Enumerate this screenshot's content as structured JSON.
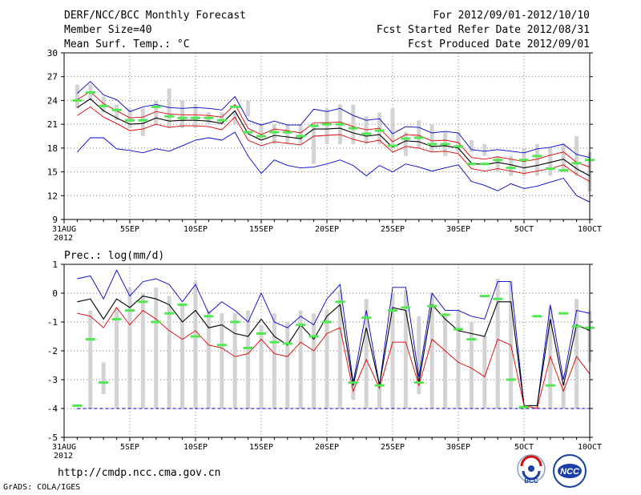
{
  "header": {
    "title": "DERF/NCC/BCC Monthly Forecast",
    "member_size": "Member Size=40",
    "variable": "Mean Surf. Temp.: °C",
    "forecast_period": "For 2012/09/01-2012/10/10",
    "start_date": "Fcst Started Refer Date 2012/08/31",
    "produced_date": "Fcst Produced Date 2012/09/01"
  },
  "footer": {
    "url": "http://cmdp.ncc.cma.gov.cn",
    "credit": "GrADS: COLA/IGES",
    "logo_bcc": "BCC",
    "logo_ncc": "NCC"
  },
  "colors": {
    "box": "#d3d3d3",
    "median": "#50e850",
    "mean": "#000000",
    "inner": "#e00000",
    "outer": "#0000cc",
    "grid": "#777777"
  },
  "chart_data": [
    {
      "type": "box-line",
      "title": "Mean Surf. Temp.: °C",
      "xlabel": "",
      "ylabel": "°C",
      "ylim": [
        9,
        30
      ],
      "yticks": [
        9,
        12,
        15,
        18,
        21,
        24,
        27,
        30
      ],
      "xticks": [
        {
          "day": 0,
          "label": "31AUG",
          "sub": "2012"
        },
        {
          "day": 5,
          "label": "5SEP"
        },
        {
          "day": 10,
          "label": "10SEP"
        },
        {
          "day": 15,
          "label": "15SEP"
        },
        {
          "day": 20,
          "label": "20SEP"
        },
        {
          "day": 25,
          "label": "25SEP"
        },
        {
          "day": 30,
          "label": "30SEP"
        },
        {
          "day": 35,
          "label": "5OCT"
        },
        {
          "day": 40,
          "label": "10OCT"
        }
      ],
      "days": [
        1,
        2,
        3,
        4,
        5,
        6,
        7,
        8,
        9,
        10,
        11,
        12,
        13,
        14,
        15,
        16,
        17,
        18,
        19,
        20,
        21,
        22,
        23,
        24,
        25,
        26,
        27,
        28,
        29,
        30,
        31,
        32,
        33,
        34,
        35,
        36,
        37,
        38,
        39,
        40
      ],
      "box_low": [
        23,
        24,
        22.5,
        21.5,
        20.5,
        19.5,
        21,
        20.5,
        20.5,
        20.5,
        21,
        21,
        21,
        22,
        19,
        18.5,
        18.5,
        18.5,
        16,
        18.5,
        18.5,
        18.5,
        18.5,
        18.5,
        18.5,
        17,
        18,
        17.5,
        17,
        17.5,
        17.5,
        17,
        15,
        14.5,
        14.5,
        14.5,
        14.5,
        15,
        14.5,
        12.5
      ],
      "box_high": [
        26,
        26,
        24.5,
        23.5,
        23,
        23,
        24,
        25.5,
        24,
        23.5,
        22.5,
        22.5,
        22.5,
        24,
        21,
        21,
        21,
        21,
        21,
        23,
        23.5,
        23.5,
        22,
        22.5,
        23,
        20,
        21.5,
        21,
        20,
        20,
        19,
        18.5,
        17,
        17,
        18,
        18.5,
        18,
        18.5,
        19.5,
        17.5
      ],
      "median": [
        24,
        25,
        23.3,
        22.8,
        21.5,
        21.5,
        23.2,
        22,
        21.8,
        21.8,
        21.8,
        21.5,
        23.2,
        20,
        19.5,
        20,
        20,
        19.5,
        20.8,
        21,
        21,
        20.5,
        19.8,
        20.2,
        18.3,
        19.2,
        19.3,
        18.5,
        18.5,
        18.2,
        16,
        16,
        16.5,
        15.5,
        16.5,
        17,
        15.4,
        15.2,
        16.1,
        16.5
      ],
      "series": [
        {
          "name": "Outer high",
          "color": "#0000cc",
          "values": [
            24.9,
            26.4,
            24.7,
            24.1,
            22.6,
            23.2,
            23.5,
            23.1,
            23,
            23.1,
            23,
            22.8,
            24.5,
            21.5,
            20.9,
            21.4,
            20.9,
            20.9,
            22.9,
            22.6,
            23,
            22.1,
            21.5,
            21.7,
            19.8,
            20.7,
            20.6,
            19.9,
            20.1,
            19.9,
            17.8,
            17.6,
            17.8,
            17.6,
            17.4,
            17.9,
            18.1,
            18.5,
            17.2,
            16.8
          ]
        },
        {
          "name": "Inner high",
          "color": "#e00000",
          "values": [
            24.1,
            25.1,
            23.6,
            22.7,
            21.8,
            21.9,
            22.6,
            22.3,
            22.2,
            22.2,
            22.1,
            21.9,
            23.5,
            20.5,
            19.7,
            20.4,
            20.2,
            19.9,
            21.2,
            21.2,
            21.3,
            20.7,
            20.3,
            20.5,
            18.8,
            19.7,
            19.6,
            18.9,
            19,
            18.7,
            16.8,
            16.6,
            16.9,
            16.6,
            16.3,
            16.6,
            17.1,
            17.5,
            16.2,
            15.6
          ]
        },
        {
          "name": "Mean",
          "color": "#000000",
          "values": [
            23.1,
            24.2,
            22.7,
            21.8,
            21,
            21.1,
            21.8,
            21.4,
            21.5,
            21.5,
            21.4,
            21.1,
            22.7,
            19.8,
            19,
            19.6,
            19.4,
            19.2,
            20.4,
            20.4,
            20.5,
            19.9,
            19.5,
            19.7,
            18.1,
            18.9,
            18.8,
            18.2,
            18.3,
            18,
            16.1,
            15.9,
            16.2,
            15.9,
            15.5,
            15.8,
            16.2,
            16.6,
            15.4,
            14.5
          ]
        },
        {
          "name": "Inner low",
          "color": "#e00000",
          "values": [
            22.1,
            23.2,
            21.9,
            21.1,
            20.2,
            20.4,
            21,
            20.6,
            20.8,
            20.8,
            20.7,
            20.3,
            21.9,
            19,
            18.3,
            18.8,
            18.6,
            18.4,
            19.5,
            19.6,
            19.7,
            19.1,
            18.7,
            19,
            17.5,
            18.2,
            18,
            17.5,
            17.6,
            17.3,
            15.4,
            15.1,
            15.4,
            15.1,
            14.8,
            15.1,
            15.4,
            15.9,
            14.7,
            13.8
          ]
        },
        {
          "name": "Outer low",
          "color": "#0000cc",
          "values": [
            17.5,
            19.3,
            19.3,
            17.9,
            17.7,
            17.4,
            17.9,
            17.6,
            18.3,
            19,
            19.3,
            19,
            20,
            17,
            14.8,
            16.5,
            15.8,
            15.5,
            15.6,
            16,
            16.5,
            15.8,
            14.5,
            15.8,
            15,
            16,
            15.6,
            15.1,
            15.5,
            15.9,
            13.8,
            13.3,
            12.6,
            13.5,
            12.9,
            13.2,
            13.7,
            14.2,
            12,
            11.2
          ]
        }
      ]
    },
    {
      "type": "box-line",
      "title": "Prec.: log(mm/d)",
      "xlabel": "",
      "ylabel": "log(mm/d)",
      "ylim": [
        -5,
        1
      ],
      "yticks": [
        -5,
        -4,
        -3,
        -2,
        -1,
        0,
        1
      ],
      "xticks": [
        {
          "day": 0,
          "label": "31AUG",
          "sub": "2012"
        },
        {
          "day": 5,
          "label": "5SEP"
        },
        {
          "day": 10,
          "label": "10SEP"
        },
        {
          "day": 15,
          "label": "15SEP"
        },
        {
          "day": 20,
          "label": "20SEP"
        },
        {
          "day": 25,
          "label": "25SEP"
        },
        {
          "day": 30,
          "label": "30SEP"
        },
        {
          "day": 35,
          "label": "5OCT"
        },
        {
          "day": 40,
          "label": "10OCT"
        }
      ],
      "days": [
        1,
        2,
        3,
        4,
        5,
        6,
        7,
        8,
        9,
        10,
        11,
        12,
        13,
        14,
        15,
        16,
        17,
        18,
        19,
        20,
        21,
        22,
        23,
        24,
        25,
        26,
        27,
        28,
        29,
        30,
        31,
        32,
        33,
        34,
        35,
        36,
        37,
        38,
        39,
        40
      ],
      "box_low": [
        -4,
        -4,
        -3.5,
        -4,
        -4,
        -4,
        -4,
        -4,
        -4,
        -4,
        -4,
        -4,
        -4,
        -4,
        -4,
        -4,
        -4,
        -4,
        -4,
        -4,
        -4,
        -3.7,
        -4,
        -4,
        -4,
        -4,
        -3.5,
        -4,
        -4,
        -4,
        -4,
        -4,
        -4,
        -4,
        -4,
        -4,
        -4,
        -4,
        -4,
        -2.4
      ],
      "box_high": [
        -4,
        -0.6,
        -2.4,
        -0.5,
        0.2,
        0,
        0.2,
        -0.1,
        -0.4,
        0.4,
        -0.6,
        -0.7,
        -0.7,
        -0.6,
        -1.1,
        -0.7,
        -1,
        -0.6,
        -0.7,
        -0.6,
        0.1,
        -3.1,
        -0.2,
        -3.1,
        0,
        0.1,
        -0.8,
        0,
        -0.7,
        -0.6,
        -1,
        -1.5,
        0.5,
        0.4,
        -4,
        -3.9,
        -0.5,
        -3.1,
        -0.2,
        -0.6
      ],
      "median": [
        -3.9,
        -1.6,
        -3.1,
        -0.9,
        -0.6,
        -0.3,
        -1,
        -0.7,
        -0.4,
        -1.5,
        -0.8,
        -1.8,
        -1,
        -1.9,
        -1.4,
        -1.7,
        -1.75,
        -1.1,
        -1.5,
        -1,
        -0.3,
        -3.1,
        -0.85,
        -3.2,
        -0.6,
        -0.5,
        -3.1,
        -0.45,
        -0.75,
        -1.25,
        -1.6,
        -0.1,
        -0.2,
        -3,
        -3.95,
        -0.8,
        -3.2,
        -0.7,
        -1.15,
        -1.2
      ],
      "series": [
        {
          "name": "Outer high",
          "color": "#0000cc",
          "values": [
            0.5,
            0.6,
            -0.2,
            0.8,
            -0.1,
            0.4,
            0.5,
            0.3,
            -0.3,
            0.3,
            -0.7,
            -0.3,
            -0.6,
            -1,
            0,
            -1,
            -1.2,
            -0.8,
            -1.1,
            -0.2,
            0.3,
            -3.1,
            -0.6,
            -3.2,
            0.2,
            0.2,
            -2.9,
            0,
            -0.6,
            -0.6,
            -0.8,
            -0.9,
            0.4,
            0.4,
            -3.9,
            -3.9,
            -0.4,
            -3,
            -0.6,
            -0.7
          ]
        },
        {
          "name": "Mean",
          "color": "#000000",
          "values": [
            -0.3,
            -0.2,
            -0.9,
            -0.2,
            -0.5,
            -0.1,
            -0.2,
            -0.4,
            -1,
            -0.6,
            -1.2,
            -1.1,
            -1.4,
            -1.5,
            -0.9,
            -1.5,
            -1.8,
            -1.1,
            -1.6,
            -0.8,
            -0.4,
            -3.2,
            -1.2,
            -3.2,
            -0.5,
            -0.6,
            -3.1,
            -0.4,
            -0.9,
            -1.3,
            -1.4,
            -1.5,
            -0.3,
            -0.3,
            -3.9,
            -3.9,
            -0.9,
            -3.2,
            -1.1,
            -1.3
          ]
        },
        {
          "name": "Inner low",
          "color": "#e00000",
          "values": [
            -0.7,
            -0.8,
            -1.2,
            -0.5,
            -1.1,
            -0.6,
            -0.9,
            -1.3,
            -1.6,
            -1.3,
            -1.8,
            -1.9,
            -2.2,
            -2.1,
            -1.6,
            -2.1,
            -2.2,
            -1.7,
            -2,
            -1.4,
            -1.2,
            -3.4,
            -2.3,
            -3.3,
            -1.7,
            -1.7,
            -3.2,
            -1.6,
            -2,
            -2.4,
            -2.6,
            -2.9,
            -1.6,
            -1.8,
            -3.9,
            -4,
            -2.2,
            -3.4,
            -2.2,
            -2.8
          ]
        },
        {
          "name": "Outer low",
          "color": "#0000cc",
          "values": [
            -4,
            -4,
            -4,
            -4,
            -4,
            -4,
            -4,
            -4,
            -4,
            -4,
            -4,
            -4,
            -4,
            -4,
            -4,
            -4,
            -4,
            -4,
            -4,
            -4,
            -4,
            -4,
            -4,
            -4,
            -4,
            -4,
            -4,
            -4,
            -4,
            -4,
            -4,
            -4,
            -4,
            -4,
            -4,
            -4,
            -4,
            -4,
            -4,
            -4
          ]
        }
      ]
    }
  ]
}
